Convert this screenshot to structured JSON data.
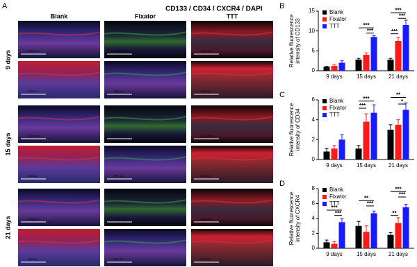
{
  "panel_a": {
    "label": "A",
    "stain_legend": [
      {
        "text": "CD133",
        "color": "#e8202a"
      },
      {
        "text": " / ",
        "color": "#000000"
      },
      {
        "text": "CD34",
        "color": "#22b522"
      },
      {
        "text": " / ",
        "color": "#000000"
      },
      {
        "text": "CXCR4",
        "color": "#e070e0"
      },
      {
        "text": " / ",
        "color": "#000000"
      },
      {
        "text": "DAPI",
        "color": "#1a1aff"
      }
    ],
    "columns": [
      "Blank",
      "Fixator",
      "TTT"
    ],
    "rows": [
      "9 days",
      "15 days",
      "21 days"
    ],
    "scale_bars": [
      [
        "2000 um",
        "2000 um",
        "2000 um"
      ],
      [
        "350 um",
        "350 um",
        "350 um"
      ],
      [
        "2000 um",
        "2000 um",
        "2000 um"
      ],
      [
        "350 um",
        "350 um",
        "350 um"
      ],
      [
        "2000 um",
        "2000 um",
        "2000 um"
      ],
      [
        "350 um",
        "350 um",
        "350 um"
      ]
    ]
  },
  "chart_data": [
    {
      "type": "bar",
      "label": "B",
      "ylabel": [
        "Relative fluorescence",
        "intensity of CD133"
      ],
      "categories": [
        "9 days",
        "15 days",
        "21 days"
      ],
      "series": [
        {
          "name": "Blank",
          "color": "#000000",
          "values": [
            1.0,
            2.8,
            2.8
          ],
          "errors": [
            0.1,
            0.3,
            0.3
          ]
        },
        {
          "name": "Fixator",
          "color": "#ff1a1a",
          "values": [
            1.2,
            4.0,
            7.5
          ],
          "errors": [
            0.3,
            0.5,
            0.8
          ]
        },
        {
          "name": "TTT",
          "color": "#1a1aff",
          "values": [
            2.0,
            8.5,
            11.5
          ],
          "errors": [
            0.5,
            0.3,
            1.2
          ]
        }
      ],
      "ylim": [
        0,
        15
      ],
      "yticks": [
        0,
        5,
        10,
        15
      ],
      "annotations": [
        "***",
        "***",
        "***",
        "***",
        "***"
      ]
    },
    {
      "type": "bar",
      "label": "C",
      "ylabel": [
        "Relative fluorescence",
        "intensity of CD34"
      ],
      "categories": [
        "9 days",
        "15 days",
        "21 days"
      ],
      "series": [
        {
          "name": "Blank",
          "color": "#000000",
          "values": [
            0.8,
            1.1,
            3.0
          ],
          "errors": [
            0.3,
            0.3,
            0.5
          ]
        },
        {
          "name": "Fixator",
          "color": "#ff1a1a",
          "values": [
            1.1,
            3.8,
            3.5
          ],
          "errors": [
            0.3,
            0.8,
            0.5
          ]
        },
        {
          "name": "TTT",
          "color": "#1a1aff",
          "values": [
            2.0,
            4.7,
            5.0
          ],
          "errors": [
            0.5,
            0.8,
            0.7
          ]
        }
      ],
      "ylim": [
        0,
        6
      ],
      "yticks": [
        0,
        2,
        4,
        6
      ],
      "annotations": [
        "***",
        "***",
        "**",
        "*"
      ]
    },
    {
      "type": "bar",
      "label": "D",
      "ylabel": [
        "Relative fluorescence",
        "intensity of CXCR4"
      ],
      "categories": [
        "9 days",
        "15 days",
        "21 days"
      ],
      "series": [
        {
          "name": "Blank",
          "color": "#000000",
          "values": [
            0.8,
            3.0,
            1.8
          ],
          "errors": [
            0.3,
            0.6,
            0.3
          ]
        },
        {
          "name": "Fixator",
          "color": "#ff1a1a",
          "values": [
            0.6,
            2.2,
            3.4
          ],
          "errors": [
            0.3,
            0.8,
            0.7
          ]
        },
        {
          "name": "TTT",
          "color": "#1a1aff",
          "values": [
            3.5,
            4.7,
            5.5
          ],
          "errors": [
            0.5,
            0.3,
            0.4
          ]
        }
      ],
      "ylim": [
        0,
        8
      ],
      "yticks": [
        0,
        2,
        4,
        6,
        8
      ],
      "annotations": [
        "***",
        "***",
        "**",
        "***",
        "***",
        "***",
        "**"
      ]
    }
  ]
}
